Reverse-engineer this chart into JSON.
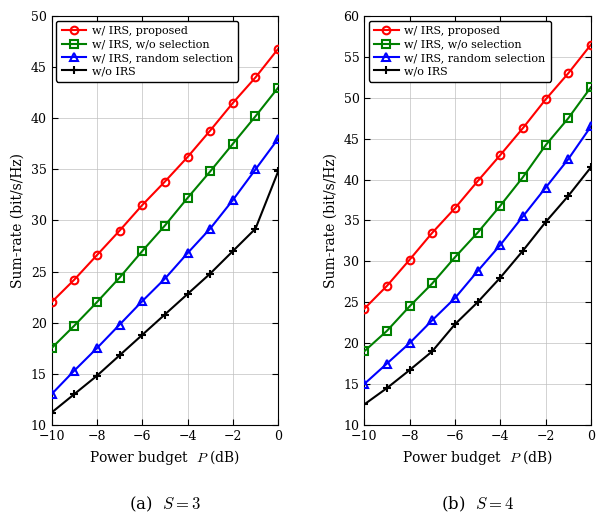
{
  "x": [
    -10,
    -9,
    -8,
    -7,
    -6,
    -5,
    -4,
    -3,
    -2,
    -1,
    0
  ],
  "subplot_a": {
    "title": "(a)  $S = 3$",
    "ylim": [
      10,
      50
    ],
    "yticks": [
      10,
      15,
      20,
      25,
      30,
      35,
      40,
      45,
      50
    ],
    "proposed": [
      22.0,
      24.2,
      26.6,
      29.0,
      31.5,
      33.8,
      36.2,
      38.8,
      41.5,
      44.0,
      46.8
    ],
    "wo_selection": [
      17.5,
      19.7,
      22.0,
      24.4,
      27.0,
      29.5,
      32.2,
      34.8,
      37.5,
      40.2,
      43.0
    ],
    "random": [
      13.0,
      15.3,
      17.5,
      19.8,
      22.1,
      24.3,
      26.8,
      29.2,
      32.0,
      35.0,
      38.0
    ],
    "wo_irs": [
      11.2,
      13.0,
      14.8,
      16.8,
      18.8,
      20.8,
      22.8,
      24.8,
      27.0,
      29.2,
      34.8
    ]
  },
  "subplot_b": {
    "title": "(b)  $S = 4$",
    "ylim": [
      10,
      60
    ],
    "yticks": [
      10,
      15,
      20,
      25,
      30,
      35,
      40,
      45,
      50,
      55,
      60
    ],
    "proposed": [
      24.2,
      27.0,
      30.2,
      33.5,
      36.5,
      39.8,
      43.0,
      46.3,
      49.8,
      53.0,
      56.5
    ],
    "wo_selection": [
      19.0,
      21.5,
      24.5,
      27.3,
      30.5,
      33.5,
      36.8,
      40.3,
      44.2,
      47.5,
      51.3
    ],
    "random": [
      15.0,
      17.5,
      20.0,
      22.8,
      25.5,
      28.8,
      32.0,
      35.5,
      39.0,
      42.5,
      46.5
    ],
    "wo_irs": [
      12.5,
      14.5,
      16.7,
      19.0,
      22.3,
      25.0,
      28.0,
      31.3,
      34.8,
      38.0,
      41.5
    ]
  },
  "colors": {
    "proposed": "#ff0000",
    "wo_selection": "#008000",
    "random": "#0000ff",
    "wo_irs": "#000000"
  },
  "markers": {
    "proposed": "o",
    "wo_selection": "s",
    "random": "^",
    "wo_irs": "+"
  },
  "legend_labels": {
    "proposed": "w/ IRS, proposed",
    "wo_selection": "w/ IRS, w/o selection",
    "random": "w/ IRS, random selection",
    "wo_irs": "w/o IRS"
  },
  "xlabel": "Power budget  $P$ (dB)",
  "ylabel": "Sum-rate (bit/s/Hz)",
  "xticks": [
    -10,
    -8,
    -6,
    -4,
    -2,
    0
  ],
  "linewidth": 1.5,
  "markersize": 5.5
}
